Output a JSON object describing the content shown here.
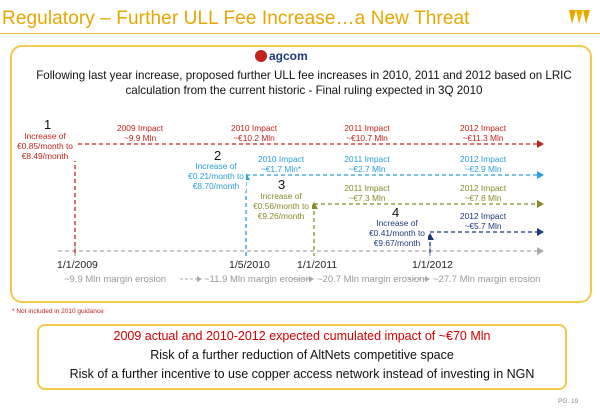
{
  "title": "Regulatory – Further ULL Fee Increase…a New Threat",
  "logo_name": "agcom",
  "intro": "Following last year increase, proposed further ULL fee increases in 2010, 2011 and 2012 based on LRIC calculation from the current historic - Final ruling expected in 3Q 2010",
  "colors": {
    "title": "#e6a800",
    "box_border": "#f3c94a",
    "step1": "#c0241c",
    "step2": "#2a9fd6",
    "step3": "#8a8a2a",
    "step4": "#1e3a7a",
    "erosion": "#999999"
  },
  "steps": [
    {
      "number": "1",
      "text": [
        "Increase of",
        "€0.85/month to",
        "€8.49/month"
      ]
    },
    {
      "number": "2",
      "text": [
        "Increase of",
        "€0.21/month to",
        "€8.70/month"
      ]
    },
    {
      "number": "3",
      "text": [
        "Increase of",
        "€0.56/month to",
        "€9.26/month"
      ]
    },
    {
      "number": "4",
      "text": [
        "Increase of",
        "€0.41/month to",
        "€9.67/month"
      ]
    }
  ],
  "impacts": {
    "row1": [
      {
        "year": "2009 Impact",
        "value": "~9.9 Mln"
      },
      {
        "year": "2010 Impact",
        "value": "~€10.2 Mln"
      },
      {
        "year": "2011 Impact",
        "value": "~€10.7 Mln"
      },
      {
        "year": "2012 Impact",
        "value": "~€11.3 Mln"
      }
    ],
    "row2": [
      {
        "year": "2010 Impact",
        "value": "~€1.7 Mln*"
      },
      {
        "year": "2011 Impact",
        "value": "~€2.7 Mln"
      },
      {
        "year": "2012 Impact",
        "value": "~€2.9 Mln"
      }
    ],
    "row3": [
      {
        "year": "2011 Impact",
        "value": "~€7.3 Mln"
      },
      {
        "year": "2012 Impact",
        "value": "~€7.8 Mln"
      }
    ],
    "row4": [
      {
        "year": "2012 Impact",
        "value": "~€5.7 Mln"
      }
    ]
  },
  "dates": [
    "1/1/2009",
    "1/5/2010",
    "1/1/2011",
    "1/1/2012"
  ],
  "erosion": [
    "~9.9 Mln margin erosion",
    "~11.9 Mln margin erosion",
    "~20.7 Mln margin erosion",
    "~27.7 Mln margin erosion"
  ],
  "footnote": "* Not included in 2010 guidance",
  "bottom": {
    "line1": "2009 actual and 2010-2012 expected cumulated impact of ~€70 Mln",
    "line2": "Risk of a further reduction of AltNets competitive space",
    "line3": "Risk of a further incentive to use copper access network instead of investing in NGN"
  },
  "page": "PG. 19"
}
